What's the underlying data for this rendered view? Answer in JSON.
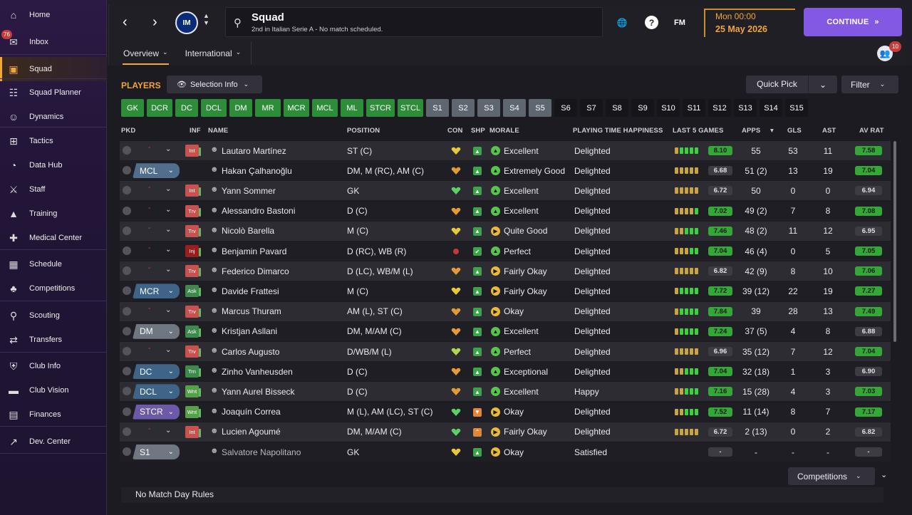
{
  "sidebar": {
    "inbox_badge": "76",
    "items": [
      {
        "label": "Home",
        "icon": "home-icon"
      },
      {
        "label": "Inbox",
        "icon": "inbox-icon"
      },
      {
        "label": "Squad",
        "icon": "shirt-icon"
      },
      {
        "label": "Squad Planner",
        "icon": "clipboard-icon"
      },
      {
        "label": "Dynamics",
        "icon": "people-icon"
      },
      {
        "label": "Tactics",
        "icon": "tactics-icon"
      },
      {
        "label": "Data Hub",
        "icon": "data-icon"
      },
      {
        "label": "Staff",
        "icon": "staff-icon"
      },
      {
        "label": "Training",
        "icon": "cone-icon"
      },
      {
        "label": "Medical Center",
        "icon": "medical-icon"
      },
      {
        "label": "Schedule",
        "icon": "calendar-icon"
      },
      {
        "label": "Competitions",
        "icon": "trophy-icon"
      },
      {
        "label": "Scouting",
        "icon": "search-icon"
      },
      {
        "label": "Transfers",
        "icon": "transfer-icon"
      },
      {
        "label": "Club Info",
        "icon": "shield-icon"
      },
      {
        "label": "Club Vision",
        "icon": "briefcase-icon"
      },
      {
        "label": "Finances",
        "icon": "money-icon"
      },
      {
        "label": "Dev. Center",
        "icon": "trend-icon"
      }
    ]
  },
  "header": {
    "club_badge": "IM",
    "title": "Squad",
    "subtitle": "2nd in Italian Serie A - No match scheduled.",
    "fm_label": "FM",
    "date_time": "Mon 00:00",
    "date_day": "25 May 2026",
    "continue_label": "CONTINUE",
    "avatar_badge": "10",
    "tabs": [
      {
        "label": "Overview"
      },
      {
        "label": "International"
      }
    ]
  },
  "toolbar": {
    "players_label": "PLAYERS",
    "selection_info": "Selection Info",
    "quick_pick": "Quick Pick",
    "filter": "Filter"
  },
  "position_filters": [
    "GK",
    "DCR",
    "DC",
    "DCL",
    "DM",
    "MR",
    "MCR",
    "MCL",
    "ML",
    "STCR",
    "STCL",
    "S1",
    "S2",
    "S3",
    "S4",
    "S5",
    "S6",
    "S7",
    "S8",
    "S9",
    "S10",
    "S11",
    "S12",
    "S13",
    "S14",
    "S15"
  ],
  "columns": {
    "pkd": "PKD",
    "inf": "INF",
    "name": "NAME",
    "position": "POSITION",
    "con": "CON",
    "shp": "SHP",
    "morale": "MORALE",
    "playing_time": "PLAYING TIME HAPPINESS",
    "last5": "LAST 5 GAMES",
    "apps": "APPS",
    "gls": "GLS",
    "ast": "AST",
    "avrat": "AV RAT"
  },
  "colors": {
    "accent": "#f0a63a",
    "continue": "#8358e3",
    "good": "#35a638"
  },
  "players": [
    {
      "pkd": "-",
      "inf": "Int",
      "name": "Lautaro Martínez",
      "position": "ST (C)",
      "con": "yellow",
      "shp": "up",
      "morale": "Excellent",
      "happiness": "Delighted",
      "last5": [
        0.6,
        0.8,
        0.8,
        0.9,
        1.0
      ],
      "last5_rating": "8.10",
      "apps": "55",
      "gls": "53",
      "ast": "11",
      "avrat": "7.58",
      "avrat_good": true
    },
    {
      "pkd": "MCL",
      "inf": "",
      "name": "Hakan Çalhanoğlu",
      "position": "DM, M (RC), AM (C)",
      "con": "orange",
      "shp": "up",
      "morale": "Extremely Good",
      "happiness": "Delighted",
      "last5": [
        0.7,
        0.7,
        0.7,
        0.7,
        0.7
      ],
      "last5_rating": "6.68",
      "apps": "51 (2)",
      "gls": "13",
      "ast": "19",
      "avrat": "7.04",
      "avrat_good": true
    },
    {
      "pkd": "-",
      "inf": "Int",
      "name": "Yann Sommer",
      "position": "GK",
      "con": "green",
      "shp": "up",
      "morale": "Excellent",
      "happiness": "Delighted",
      "last5": [
        0.7,
        0.7,
        0.7,
        0.7,
        0.7
      ],
      "last5_rating": "6.72",
      "apps": "50",
      "gls": "0",
      "ast": "0",
      "avrat": "6.94",
      "avrat_good": false
    },
    {
      "pkd": "-",
      "inf": "Trv",
      "name": "Alessandro Bastoni",
      "position": "D (C)",
      "con": "orange",
      "shp": "up",
      "morale": "Excellent",
      "happiness": "Delighted",
      "last5": [
        0.7,
        0.7,
        0.7,
        0.7,
        0.8
      ],
      "last5_rating": "7.02",
      "apps": "49 (2)",
      "gls": "7",
      "ast": "8",
      "avrat": "7.08",
      "avrat_good": true
    },
    {
      "pkd": "-",
      "inf": "Trv",
      "name": "Nicolò Barella",
      "position": "M (C)",
      "con": "yellow",
      "shp": "up",
      "morale": "Quite Good",
      "happiness": "Delighted",
      "last5": [
        0.6,
        0.7,
        0.9,
        0.8,
        0.9
      ],
      "last5_rating": "7.46",
      "apps": "48 (2)",
      "gls": "11",
      "ast": "12",
      "avrat": "6.95",
      "avrat_good": false
    },
    {
      "pkd": "-",
      "inf": "Inj",
      "name": "Benjamin Pavard",
      "position": "D (RC), WB (R)",
      "con": "injured",
      "shp": "check",
      "morale": "Perfect",
      "happiness": "Delighted",
      "last5": [
        0.7,
        0.7,
        0.7,
        0.8,
        0.8
      ],
      "last5_rating": "7.04",
      "apps": "46 (4)",
      "gls": "0",
      "ast": "5",
      "avrat": "7.05",
      "avrat_good": true
    },
    {
      "pkd": "-",
      "inf": "Trv",
      "name": "Federico Dimarco",
      "position": "D (LC), WB/M (L)",
      "con": "orange",
      "shp": "up",
      "morale": "Fairly Okay",
      "happiness": "Delighted",
      "last5": [
        0.7,
        0.7,
        0.7,
        0.7,
        0.7
      ],
      "last5_rating": "6.82",
      "apps": "42 (9)",
      "gls": "8",
      "ast": "10",
      "avrat": "7.06",
      "avrat_good": true
    },
    {
      "pkd": "MCR",
      "inf": "Ask",
      "name": "Davide Frattesi",
      "position": "M (C)",
      "con": "yellow",
      "shp": "up",
      "morale": "Fairly Okay",
      "happiness": "Delighted",
      "last5": [
        0.7,
        0.8,
        0.9,
        0.9,
        0.9
      ],
      "last5_rating": "7.72",
      "apps": "39 (12)",
      "gls": "22",
      "ast": "19",
      "avrat": "7.27",
      "avrat_good": true
    },
    {
      "pkd": "-",
      "inf": "Trv",
      "name": "Marcus Thuram",
      "position": "AM (L), ST (C)",
      "con": "orange",
      "shp": "up",
      "morale": "Okay",
      "happiness": "Delighted",
      "last5": [
        0.7,
        0.9,
        0.8,
        0.8,
        0.9
      ],
      "last5_rating": "7.84",
      "apps": "39",
      "gls": "28",
      "ast": "13",
      "avrat": "7.49",
      "avrat_good": true
    },
    {
      "pkd": "DM",
      "inf": "Ask",
      "name": "Kristjan Asllani",
      "position": "DM, M/AM (C)",
      "con": "orange",
      "shp": "up",
      "morale": "Excellent",
      "happiness": "Delighted",
      "last5": [
        0.7,
        0.9,
        0.9,
        0.8,
        0.8
      ],
      "last5_rating": "7.24",
      "apps": "37 (5)",
      "gls": "4",
      "ast": "8",
      "avrat": "6.88",
      "avrat_good": false
    },
    {
      "pkd": "-",
      "inf": "Trv",
      "name": "Carlos Augusto",
      "position": "D/WB/M (L)",
      "con": "lime",
      "shp": "up",
      "morale": "Perfect",
      "happiness": "Delighted",
      "last5": [
        0.7,
        0.7,
        0.7,
        0.7,
        0.7
      ],
      "last5_rating": "6.96",
      "apps": "35 (12)",
      "gls": "7",
      "ast": "12",
      "avrat": "7.04",
      "avrat_good": true
    },
    {
      "pkd": "DC",
      "inf": "Trn",
      "name": "Zinho Vanheusden",
      "position": "D (C)",
      "con": "orange",
      "shp": "up",
      "morale": "Exceptional",
      "happiness": "Delighted",
      "last5": [
        0.7,
        0.7,
        0.8,
        0.8,
        0.8
      ],
      "last5_rating": "7.04",
      "apps": "32 (18)",
      "gls": "1",
      "ast": "3",
      "avrat": "6.90",
      "avrat_good": false
    },
    {
      "pkd": "DCL",
      "inf": "Wnt",
      "name": "Yann Aurel Bisseck",
      "position": "D (C)",
      "con": "orange",
      "shp": "up",
      "morale": "Excellent",
      "happiness": "Happy",
      "last5": [
        0.7,
        0.7,
        0.8,
        0.8,
        0.8
      ],
      "last5_rating": "7.16",
      "apps": "15 (28)",
      "gls": "4",
      "ast": "3",
      "avrat": "7.03",
      "avrat_good": true
    },
    {
      "pkd": "STCR",
      "inf": "Wnt",
      "name": "Joaquín Correa",
      "position": "M (L), AM (LC), ST (C)",
      "con": "green",
      "shp": "down",
      "morale": "Okay",
      "happiness": "Delighted",
      "last5": [
        0.7,
        0.7,
        0.8,
        0.9,
        0.8
      ],
      "last5_rating": "7.52",
      "apps": "11 (14)",
      "gls": "8",
      "ast": "7",
      "avrat": "7.17",
      "avrat_good": true
    },
    {
      "pkd": "-",
      "inf": "Int",
      "name": "Lucien Agoumé",
      "position": "DM, M/AM (C)",
      "con": "green",
      "shp": "up2",
      "morale": "Fairly Okay",
      "happiness": "Delighted",
      "last5": [
        0.7,
        0.7,
        0.7,
        0.7,
        0.7
      ],
      "last5_rating": "6.72",
      "apps": "2 (13)",
      "gls": "0",
      "ast": "2",
      "avrat": "6.82",
      "avrat_good": false
    },
    {
      "pkd": "S1",
      "inf": "",
      "name": "Salvatore Napolitano",
      "position": "GK",
      "con": "yellow",
      "shp": "up",
      "morale": "Okay",
      "happiness": "Satisfied",
      "last5": [],
      "last5_rating": "-",
      "apps": "-",
      "gls": "-",
      "ast": "-",
      "avrat": "-",
      "avrat_good": false
    }
  ],
  "footer": {
    "competitions": "Competitions",
    "rules": "No Match Day Rules"
  }
}
